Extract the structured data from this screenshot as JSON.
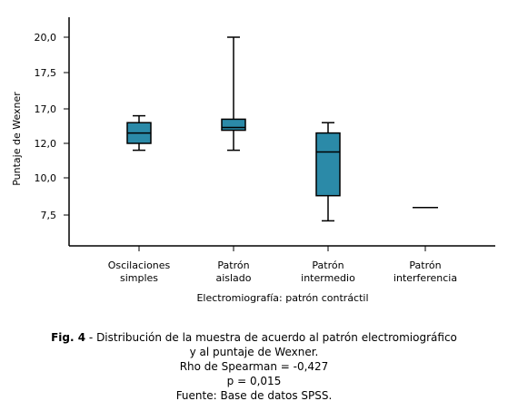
{
  "chart_data": {
    "type": "boxplot",
    "ylabel": "Puntaje de Wexner",
    "xlabel": "Electromiografía: patrón contráctil",
    "y_ticks": [
      7.5,
      10.0,
      12.0,
      17.0,
      17.5,
      20.0
    ],
    "y_tick_labels": [
      "7,5",
      "10,0",
      "12,0",
      "17,0",
      "17,5",
      "20,0"
    ],
    "categories": [
      [
        "Oscilaciones",
        "simples"
      ],
      [
        "Patrón",
        "aislado"
      ],
      [
        "Patrón",
        "intermedio"
      ],
      [
        "Patrón",
        "interferencia"
      ]
    ],
    "boxes": [
      {
        "min": 11.6,
        "q1": 12.0,
        "median": 13.5,
        "q3": 15.0,
        "max": 16.0
      },
      {
        "min": 11.6,
        "q1": 13.9,
        "median": 14.3,
        "q3": 15.5,
        "max": 20.0
      },
      {
        "min": 7.1,
        "q1": 8.8,
        "median": 11.5,
        "q3": 13.5,
        "max": 15.0
      },
      {
        "min": 8.0,
        "q1": 8.0,
        "median": 8.0,
        "q3": 8.0,
        "max": 8.0
      }
    ],
    "box_color": "#2b8aa8",
    "grid": false
  },
  "caption": {
    "fig_label": "Fig. 4",
    "line1": " - Distribución de la muestra de acuerdo al patrón electromiográfico",
    "line2": "y al puntaje de Wexner.",
    "line3": "Rho de Spearman = -0,427",
    "line4": "p = 0,015",
    "line5": "Fuente: Base de datos SPSS."
  }
}
